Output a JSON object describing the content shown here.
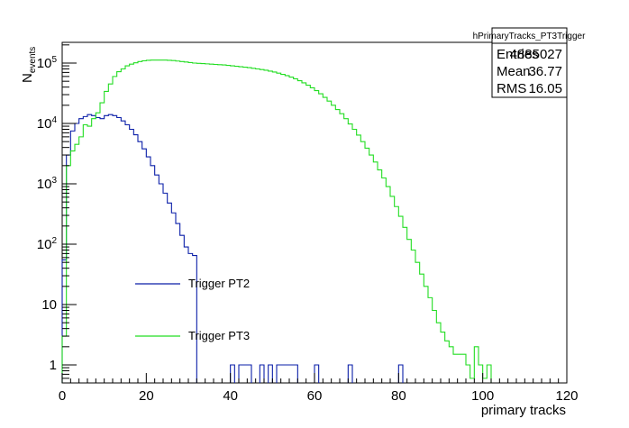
{
  "chart_data": {
    "type": "line",
    "render": "histogram-step",
    "scale": {
      "y": "log"
    },
    "xlabel": "primary tracks",
    "ylabel": {
      "base": "N",
      "subscript": "events"
    },
    "xlim": [
      0,
      120
    ],
    "ylim": [
      0.5,
      200000
    ],
    "x_ticks": [
      0,
      20,
      40,
      60,
      80,
      100,
      120
    ],
    "y_ticks": [
      {
        "value": 1,
        "label": "1"
      },
      {
        "value": 10,
        "label": "10"
      },
      {
        "value": 100,
        "label": "10",
        "exp": "2"
      },
      {
        "value": 1000,
        "label": "10",
        "exp": "3"
      },
      {
        "value": 10000,
        "label": "10",
        "exp": "4"
      },
      {
        "value": 100000,
        "label": "10",
        "exp": "5"
      }
    ],
    "grid": false,
    "legend": {
      "position": "left-middle",
      "entries": [
        "Trigger PT2",
        "Trigger PT3"
      ]
    },
    "stats_box": {
      "title": "hPrimaryTracks_PT3Trigger",
      "rows": [
        {
          "label": "Entries",
          "value": "4885027"
        },
        {
          "label": "Mean",
          "value": "36.77"
        },
        {
          "label": "RMS",
          "value": "16.05"
        }
      ]
    },
    "series": [
      {
        "name": "Trigger PT2",
        "color": "#0a1ea8",
        "bin_width": 1,
        "bins": [
          [
            0,
            55
          ],
          [
            1,
            3000
          ],
          [
            2,
            7500
          ],
          [
            3,
            10000
          ],
          [
            4,
            12000
          ],
          [
            5,
            13000
          ],
          [
            6,
            14000
          ],
          [
            7,
            13500
          ],
          [
            8,
            12500
          ],
          [
            9,
            12000
          ],
          [
            10,
            13500
          ],
          [
            11,
            14000
          ],
          [
            12,
            13500
          ],
          [
            13,
            12500
          ],
          [
            14,
            11000
          ],
          [
            15,
            9500
          ],
          [
            16,
            8000
          ],
          [
            17,
            6500
          ],
          [
            18,
            5000
          ],
          [
            19,
            3800
          ],
          [
            20,
            2800
          ],
          [
            21,
            2000
          ],
          [
            22,
            1400
          ],
          [
            23,
            1000
          ],
          [
            24,
            700
          ],
          [
            25,
            480
          ],
          [
            26,
            330
          ],
          [
            27,
            220
          ],
          [
            28,
            140
          ],
          [
            29,
            90
          ],
          [
            30,
            70
          ],
          [
            31,
            65
          ],
          [
            40,
            1
          ],
          [
            42,
            1
          ],
          [
            43,
            1
          ],
          [
            44,
            1
          ],
          [
            47,
            1
          ],
          [
            49,
            1
          ],
          [
            51,
            1
          ],
          [
            52,
            1
          ],
          [
            53,
            1
          ],
          [
            54,
            1
          ],
          [
            55,
            1
          ],
          [
            60,
            1
          ],
          [
            68,
            1
          ],
          [
            80,
            1
          ]
        ]
      },
      {
        "name": "Trigger PT3",
        "color": "#22dd22",
        "bin_width": 1,
        "bins": [
          [
            0,
            3
          ],
          [
            1,
            2000
          ],
          [
            2,
            3500
          ],
          [
            3,
            4500
          ],
          [
            4,
            6000
          ],
          [
            5,
            9500
          ],
          [
            6,
            9000
          ],
          [
            7,
            12000
          ],
          [
            8,
            15000
          ],
          [
            9,
            22000
          ],
          [
            10,
            34000
          ],
          [
            11,
            45000
          ],
          [
            12,
            60000
          ],
          [
            13,
            72000
          ],
          [
            14,
            80000
          ],
          [
            15,
            90000
          ],
          [
            16,
            96000
          ],
          [
            17,
            101000
          ],
          [
            18,
            106000
          ],
          [
            19,
            109000
          ],
          [
            20,
            111000
          ],
          [
            21,
            112000
          ],
          [
            22,
            112000
          ],
          [
            23,
            112000
          ],
          [
            24,
            112000
          ],
          [
            25,
            111000
          ],
          [
            26,
            110000
          ],
          [
            27,
            108000
          ],
          [
            28,
            106000
          ],
          [
            29,
            104000
          ],
          [
            30,
            102000
          ],
          [
            31,
            100000
          ],
          [
            32,
            99000
          ],
          [
            33,
            98000
          ],
          [
            34,
            97000
          ],
          [
            35,
            96000
          ],
          [
            36,
            95000
          ],
          [
            37,
            94000
          ],
          [
            38,
            93000
          ],
          [
            39,
            91500
          ],
          [
            40,
            90000
          ],
          [
            41,
            88500
          ],
          [
            42,
            87000
          ],
          [
            43,
            85500
          ],
          [
            44,
            84000
          ],
          [
            45,
            82000
          ],
          [
            46,
            80000
          ],
          [
            47,
            78000
          ],
          [
            48,
            76000
          ],
          [
            49,
            73500
          ],
          [
            50,
            71000
          ],
          [
            51,
            68000
          ],
          [
            52,
            65000
          ],
          [
            53,
            62000
          ],
          [
            54,
            58500
          ],
          [
            55,
            55000
          ],
          [
            56,
            51000
          ],
          [
            57,
            47000
          ],
          [
            58,
            43000
          ],
          [
            59,
            39000
          ],
          [
            60,
            35000
          ],
          [
            61,
            31000
          ],
          [
            62,
            27000
          ],
          [
            63,
            23500
          ],
          [
            64,
            20000
          ],
          [
            65,
            17000
          ],
          [
            66,
            14500
          ],
          [
            67,
            12000
          ],
          [
            68,
            9800
          ],
          [
            69,
            8000
          ],
          [
            70,
            6400
          ],
          [
            71,
            5000
          ],
          [
            72,
            3900
          ],
          [
            73,
            3000
          ],
          [
            74,
            2300
          ],
          [
            75,
            1700
          ],
          [
            76,
            1250
          ],
          [
            77,
            900
          ],
          [
            78,
            620
          ],
          [
            79,
            420
          ],
          [
            80,
            290
          ],
          [
            81,
            190
          ],
          [
            82,
            120
          ],
          [
            83,
            80
          ],
          [
            84,
            50
          ],
          [
            85,
            32
          ],
          [
            86,
            20
          ],
          [
            87,
            13
          ],
          [
            88,
            8
          ],
          [
            89,
            5
          ],
          [
            90,
            3.5
          ],
          [
            91,
            2.5
          ],
          [
            92,
            2
          ],
          [
            93,
            1.5
          ],
          [
            94,
            1.5
          ],
          [
            95,
            1.5
          ],
          [
            96,
            1
          ],
          [
            97,
            0.6
          ],
          [
            98,
            2
          ],
          [
            99,
            1
          ],
          [
            100,
            0.6
          ],
          [
            101,
            1
          ]
        ]
      }
    ]
  }
}
